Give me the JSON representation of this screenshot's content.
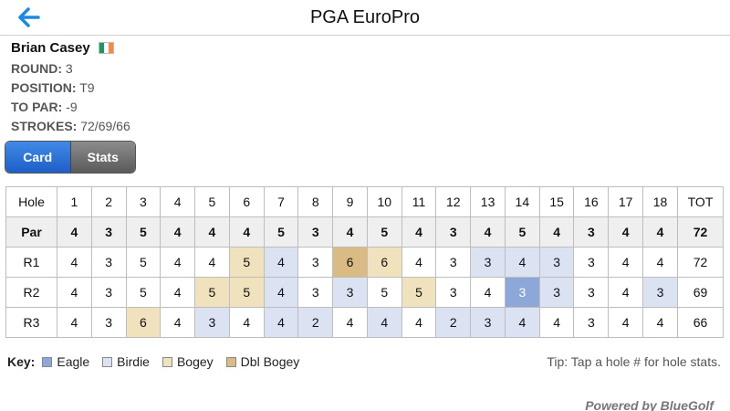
{
  "header": {
    "title": "PGA EuroPro",
    "back_icon": "arrow-left-icon",
    "accent": "#1e88e5"
  },
  "player": {
    "name": "Brian Casey",
    "flag_colors": [
      "#169b62",
      "#ffffff",
      "#ff883e"
    ],
    "info": [
      {
        "label": "ROUND:",
        "value": "3"
      },
      {
        "label": "POSITION:",
        "value": "T9"
      },
      {
        "label": "TO PAR:",
        "value": "-9"
      },
      {
        "label": "STROKES:",
        "value": "72/69/66"
      }
    ]
  },
  "tabs": [
    {
      "label": "Card",
      "active": true
    },
    {
      "label": "Stats",
      "active": false
    }
  ],
  "scorecard": {
    "header": [
      "Hole",
      "1",
      "2",
      "3",
      "4",
      "5",
      "6",
      "7",
      "8",
      "9",
      "10",
      "11",
      "12",
      "13",
      "14",
      "15",
      "16",
      "17",
      "18",
      "TOT"
    ],
    "par": [
      "Par",
      "4",
      "3",
      "5",
      "4",
      "4",
      "4",
      "5",
      "3",
      "4",
      "5",
      "4",
      "3",
      "4",
      "5",
      "4",
      "3",
      "4",
      "4",
      "72"
    ],
    "rounds": [
      {
        "label": "R1",
        "scores": [
          "4",
          "3",
          "5",
          "4",
          "4",
          "5",
          "4",
          "3",
          "6",
          "6",
          "4",
          "3",
          "3",
          "4",
          "3",
          "3",
          "4",
          "4"
        ],
        "total": "72"
      },
      {
        "label": "R2",
        "scores": [
          "4",
          "3",
          "5",
          "4",
          "5",
          "5",
          "4",
          "3",
          "3",
          "5",
          "5",
          "3",
          "4",
          "3",
          "3",
          "3",
          "4",
          "3"
        ],
        "total": "69"
      },
      {
        "label": "R3",
        "scores": [
          "4",
          "3",
          "6",
          "4",
          "3",
          "4",
          "4",
          "2",
          "4",
          "4",
          "4",
          "2",
          "3",
          "4",
          "4",
          "3",
          "4",
          "4"
        ],
        "total": "66"
      }
    ]
  },
  "key": {
    "title": "Key:",
    "items": [
      {
        "label": "Eagle",
        "color": "#8da7d9"
      },
      {
        "label": "Birdie",
        "color": "#dbe3f3"
      },
      {
        "label": "Bogey",
        "color": "#f0e2bd"
      },
      {
        "label": "Dbl Bogey",
        "color": "#dbbb84"
      }
    ]
  },
  "tip": "Tip: Tap a hole # for hole stats.",
  "powered_by": "Powered by BlueGolf"
}
